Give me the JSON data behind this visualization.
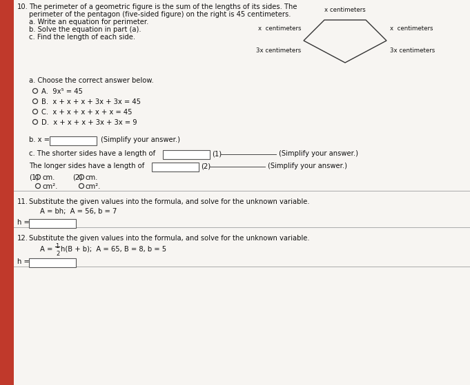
{
  "bg_color": "#e8e4df",
  "paper_color": "#f5f3f0",
  "red_color": "#c0392b",
  "line_color": "#888888",
  "text_color": "#111111",
  "q10_num": "10.",
  "q10_lines": [
    "The perimeter of a geometric figure is the sum of the lengths of its sides. The",
    "perimeter of the pentagon (five-sided figure) on the right is 45 centimeters.",
    "a. Write an equation for perimeter.",
    "b. Solve the equation in part (a).",
    "c. Find the length of each side."
  ],
  "pent_top_label": "x centimeters",
  "pent_left_label": "x  centimeters",
  "pent_right_label": "x  centimeters",
  "pent_bot_left_label": "3x centimeters",
  "pent_bot_right_label": "3x centimeters",
  "part_a_header": "a. Choose the correct answer below.",
  "choices": [
    "A.  9x⁵ = 45",
    "B.  x + x + x + 3x + 3x = 45",
    "C.  x + x + x + x + x = 45",
    "D.  x + x + x + 3x + 3x = 9"
  ],
  "part_b_prefix": "b. x =",
  "part_b_suffix": "(Simplify your answer.)",
  "part_c1_prefix": "c. The shorter sides have a length of",
  "part_c1_mid": "(1)",
  "part_c1_suffix": "(Simplify your answer.)",
  "part_c2_prefix": "The longer sides have a length of",
  "part_c2_mid": "(2)",
  "part_c2_suffix": "(Simplify your answer.)",
  "units1_label": "(1)",
  "units1_cm": "cm.",
  "units2_label": "(2)",
  "units2_cm": "cm.",
  "units1_cm2": "cm².",
  "units2_cm2": "cm².",
  "q11_num": "11.",
  "q11_text": "Substitute the given values into the formula, and solve for the unknown variable.",
  "q11_formula": "A = bh;  A = 56, b = 7",
  "q11_h": "h =",
  "q12_num": "12.",
  "q12_text": "Substitute the given values into the formula, and solve for the unknown variable.",
  "q12_frac_num": "1",
  "q12_frac_den": "2",
  "q12_formula": "A = —h(B + b);  A = 65, B = 8, b = 5",
  "q12_h": "h ="
}
